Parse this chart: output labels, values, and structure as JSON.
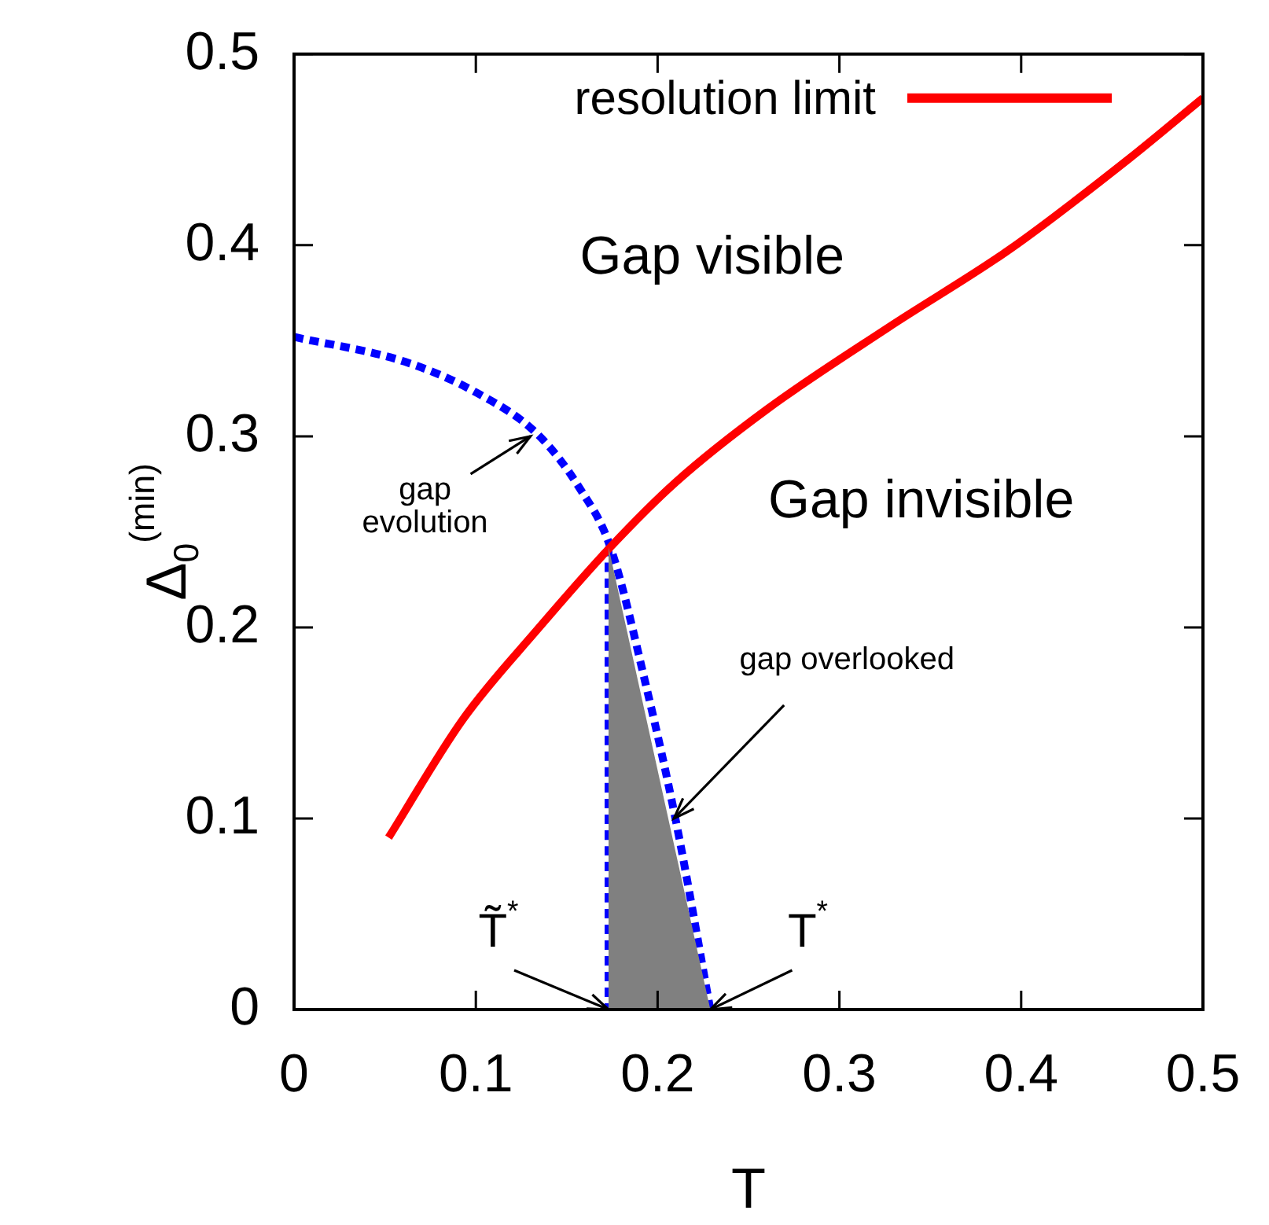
{
  "chart_data": {
    "type": "line",
    "xlabel": "T",
    "ylabel": "Δ$_{0}$$^{(min)}$",
    "xlim": [
      0,
      0.5
    ],
    "xticks": [
      0,
      0.1,
      0.2,
      0.3,
      0.4,
      0.5
    ],
    "ylim": [
      0,
      0.5
    ],
    "yticks": [
      0,
      0.1,
      0.2,
      0.3,
      0.4,
      0.5
    ],
    "grid": false,
    "legend": "top right",
    "marker": "none",
    "series": [
      {
        "type": "area",
        "color": "#808080",
        "x": [
          0.173,
          0.229
        ],
        "values": [
          0.242,
          0
        ]
      },
      {
        "name": "resolution limit",
        "color": "#ff0000",
        "line_style": "solid",
        "x": [
          0.052,
          0.093,
          0.134,
          0.174,
          0.21,
          0.26,
          0.327,
          0.394,
          0.459,
          0.5
        ],
        "values": [
          0.09,
          0.152,
          0.199,
          0.242,
          0.276,
          0.314,
          0.357,
          0.398,
          0.445,
          0.477
        ]
      },
      {
        "color": "#0000ff",
        "line_style": "dotted",
        "x": [
          0,
          0.061,
          0.1,
          0.134,
          0.157,
          0.174,
          0.194,
          0.21,
          0.229
        ],
        "values": [
          0.352,
          0.339,
          0.323,
          0.301,
          0.273,
          0.242,
          0.168,
          0.099,
          0
        ]
      },
      {
        "color": "#0000ff",
        "line_style": "dotted",
        "x": [
          0.173,
          0.173
        ],
        "values": [
          0.242,
          0
        ]
      }
    ],
    "annotations": [
      "Gap visible",
      "Gap invisible",
      {
        "text": "gap evolution",
        "x": 0.13,
        "y": 0.3
      },
      {
        "text": "gap overlooked",
        "x": 0.209,
        "y": 0.1
      },
      {
        "text": "T̃$^{*}$",
        "x": 0.173,
        "y": 0
      },
      {
        "text": "T$^{*}$",
        "x": 0.229,
        "y": 0
      }
    ]
  }
}
